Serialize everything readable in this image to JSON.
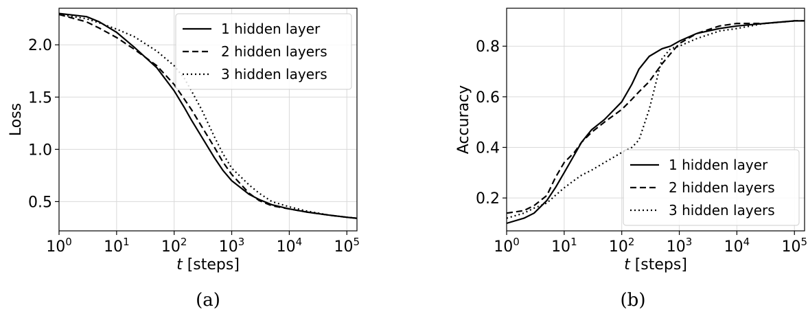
{
  "chart_data": [
    {
      "type": "line",
      "panel_label": "(a)",
      "xlabel": "[steps]",
      "xlabel_var": "t",
      "ylabel": "Loss",
      "xscale": "log",
      "xlim": [
        1,
        150000
      ],
      "ylim": [
        0.22,
        2.35
      ],
      "x_ticks": [
        {
          "value": 1,
          "base": "10",
          "exp": "0"
        },
        {
          "value": 10,
          "base": "10",
          "exp": "1"
        },
        {
          "value": 100,
          "base": "10",
          "exp": "2"
        },
        {
          "value": 1000,
          "base": "10",
          "exp": "3"
        },
        {
          "value": 10000,
          "base": "10",
          "exp": "4"
        },
        {
          "value": 100000,
          "base": "10",
          "exp": "5"
        }
      ],
      "y_ticks": [
        {
          "value": 0.5,
          "label": "0.5"
        },
        {
          "value": 1.0,
          "label": "1.0"
        },
        {
          "value": 1.5,
          "label": "1.5"
        },
        {
          "value": 2.0,
          "label": "2.0"
        }
      ],
      "grid": true,
      "legend_position": "top-right",
      "series": [
        {
          "name": "1 hidden layer",
          "dash": "solid",
          "x": [
            1,
            3,
            5,
            10,
            20,
            50,
            100,
            150,
            200,
            300,
            500,
            700,
            1000,
            2000,
            3000,
            5000,
            10000,
            20000,
            50000,
            100000,
            150000
          ],
          "y": [
            2.3,
            2.27,
            2.22,
            2.12,
            1.98,
            1.78,
            1.56,
            1.4,
            1.28,
            1.12,
            0.92,
            0.8,
            0.7,
            0.57,
            0.52,
            0.47,
            0.43,
            0.4,
            0.37,
            0.35,
            0.34
          ]
        },
        {
          "name": "2 hidden layers",
          "dash": "dashed",
          "x": [
            1,
            3,
            5,
            10,
            20,
            50,
            100,
            150,
            200,
            300,
            500,
            700,
            1000,
            2000,
            3000,
            5000,
            10000,
            20000,
            50000,
            100000,
            150000
          ],
          "y": [
            2.29,
            2.22,
            2.16,
            2.07,
            1.96,
            1.8,
            1.62,
            1.48,
            1.38,
            1.22,
            1.02,
            0.88,
            0.76,
            0.58,
            0.51,
            0.46,
            0.43,
            0.4,
            0.37,
            0.35,
            0.34
          ]
        },
        {
          "name": "3 hidden layers",
          "dash": "dotted",
          "x": [
            1,
            3,
            5,
            10,
            20,
            50,
            100,
            150,
            200,
            300,
            500,
            700,
            1000,
            2000,
            3000,
            5000,
            10000,
            20000,
            50000,
            100000,
            150000
          ],
          "y": [
            2.29,
            2.25,
            2.21,
            2.15,
            2.08,
            1.94,
            1.8,
            1.68,
            1.56,
            1.38,
            1.12,
            0.96,
            0.82,
            0.66,
            0.58,
            0.5,
            0.45,
            0.41,
            0.37,
            0.35,
            0.34
          ]
        }
      ]
    },
    {
      "type": "line",
      "panel_label": "(b)",
      "xlabel": "[steps]",
      "xlabel_var": "t",
      "ylabel": "Accuracy",
      "xscale": "log",
      "xlim": [
        1,
        150000
      ],
      "ylim": [
        0.07,
        0.95
      ],
      "x_ticks": [
        {
          "value": 1,
          "base": "10",
          "exp": "0"
        },
        {
          "value": 10,
          "base": "10",
          "exp": "1"
        },
        {
          "value": 100,
          "base": "10",
          "exp": "2"
        },
        {
          "value": 1000,
          "base": "10",
          "exp": "3"
        },
        {
          "value": 10000,
          "base": "10",
          "exp": "4"
        },
        {
          "value": 100000,
          "base": "10",
          "exp": "5"
        }
      ],
      "y_ticks": [
        {
          "value": 0.2,
          "label": "0.2"
        },
        {
          "value": 0.4,
          "label": "0.4"
        },
        {
          "value": 0.6,
          "label": "0.6"
        },
        {
          "value": 0.8,
          "label": "0.8"
        }
      ],
      "grid": true,
      "legend_position": "lower-right",
      "series": [
        {
          "name": "1 hidden layer",
          "dash": "solid",
          "x": [
            1,
            2,
            3,
            5,
            7,
            10,
            15,
            20,
            30,
            50,
            100,
            150,
            200,
            300,
            500,
            700,
            1000,
            2000,
            5000,
            10000,
            30000,
            100000,
            150000
          ],
          "y": [
            0.1,
            0.12,
            0.14,
            0.19,
            0.24,
            0.3,
            0.37,
            0.42,
            0.47,
            0.51,
            0.58,
            0.65,
            0.71,
            0.76,
            0.79,
            0.8,
            0.82,
            0.85,
            0.87,
            0.88,
            0.89,
            0.9,
            0.9
          ]
        },
        {
          "name": "2 hidden layers",
          "dash": "dashed",
          "x": [
            1,
            2,
            3,
            5,
            7,
            10,
            15,
            20,
            30,
            50,
            100,
            150,
            200,
            300,
            500,
            700,
            1000,
            2000,
            5000,
            10000,
            30000,
            100000,
            150000
          ],
          "y": [
            0.14,
            0.15,
            0.17,
            0.21,
            0.28,
            0.34,
            0.38,
            0.42,
            0.46,
            0.5,
            0.55,
            0.59,
            0.62,
            0.66,
            0.73,
            0.77,
            0.81,
            0.85,
            0.88,
            0.89,
            0.89,
            0.9,
            0.9
          ]
        },
        {
          "name": "3 hidden layers",
          "dash": "dotted",
          "x": [
            1,
            2,
            3,
            5,
            7,
            10,
            15,
            20,
            30,
            50,
            100,
            150,
            200,
            300,
            500,
            700,
            1000,
            2000,
            5000,
            10000,
            30000,
            100000,
            150000
          ],
          "y": [
            0.12,
            0.14,
            0.16,
            0.18,
            0.21,
            0.24,
            0.27,
            0.29,
            0.31,
            0.34,
            0.38,
            0.4,
            0.43,
            0.55,
            0.75,
            0.79,
            0.8,
            0.83,
            0.86,
            0.87,
            0.89,
            0.9,
            0.9
          ]
        }
      ]
    }
  ]
}
